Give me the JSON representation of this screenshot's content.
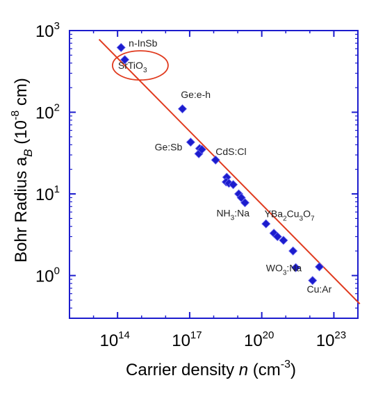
{
  "chart_data": {
    "type": "scatter",
    "title": "",
    "xlabel": {
      "main": "Carrier density ",
      "var": "n",
      "unit_open": " (cm",
      "unit_exp": "-3",
      "unit_close": ")"
    },
    "ylabel": {
      "main": "Bohr Radius a",
      "sub": "B",
      "unit_open": " (10",
      "unit_exp": "-8",
      "unit_close": " cm)"
    },
    "x_scale": "log",
    "y_scale": "log",
    "xlim": [
      1000000000000.0,
      1e+24
    ],
    "ylim": [
      0.3,
      1000
    ],
    "x_ticks": [
      {
        "value": 100000000000000.0,
        "base": "10",
        "exp": "14"
      },
      {
        "value": 1e+17,
        "base": "10",
        "exp": "17"
      },
      {
        "value": 1e+20,
        "base": "10",
        "exp": "20"
      },
      {
        "value": 1e+23,
        "base": "10",
        "exp": "23"
      }
    ],
    "y_ticks": [
      {
        "value": 1,
        "base": "10",
        "exp": "0"
      },
      {
        "value": 10,
        "base": "10",
        "exp": "1"
      },
      {
        "value": 100,
        "base": "10",
        "exp": "2"
      },
      {
        "value": 1000,
        "base": "10",
        "exp": "3"
      }
    ],
    "series": [
      {
        "points": [
          {
            "x": 140000000000000.0,
            "y": 620
          },
          {
            "x": 200000000000000.0,
            "y": 440
          },
          {
            "x": 5e+16,
            "y": 110
          },
          {
            "x": 1.1e+17,
            "y": 43
          },
          {
            "x": 2.6e+17,
            "y": 36
          },
          {
            "x": 2.4e+17,
            "y": 31
          },
          {
            "x": 3.2e+17,
            "y": 35
          },
          {
            "x": 1.2e+18,
            "y": 26
          },
          {
            "x": 3.5e+18,
            "y": 16
          },
          {
            "x": 3.3e+18,
            "y": 14
          },
          {
            "x": 4.3e+18,
            "y": 13.5
          },
          {
            "x": 6.5e+18,
            "y": 13
          },
          {
            "x": 1.1e+19,
            "y": 10
          },
          {
            "x": 1.4e+19,
            "y": 9
          },
          {
            "x": 2e+19,
            "y": 7.8
          },
          {
            "x": 1.5e+20,
            "y": 4.3
          },
          {
            "x": 3.2e+20,
            "y": 3.3
          },
          {
            "x": 4.5e+20,
            "y": 3.0
          },
          {
            "x": 8e+20,
            "y": 2.7
          },
          {
            "x": 2e+21,
            "y": 2.0
          },
          {
            "x": 2.6e+21,
            "y": 1.25
          },
          {
            "x": 1.3e+22,
            "y": 0.87
          },
          {
            "x": 2.5e+22,
            "y": 1.28
          }
        ],
        "marker_color": "#1c1ccd",
        "marker_edge_color": "#6a6af0"
      }
    ],
    "fit_line": {
      "color": "#e03a1e",
      "x": [
        17000000000000.0,
        1.2e+24
      ],
      "y": [
        780,
        0.45
      ]
    },
    "annotations": [
      {
        "text": "n-InSb",
        "x": 290000000000000.0,
        "y": 640
      },
      {
        "text": "Ge:e-h",
        "x": 4.3e+16,
        "y": 150
      },
      {
        "text": "Ge:Sb",
        "x": 3500000000000000.0,
        "y": 34
      },
      {
        "text": "CdS:Cl",
        "x": 1.2e+18,
        "y": 30
      },
      {
        "text": "YBa",
        "sub": [
          "2",
          "3",
          "7"
        ],
        "parts": [
          "YBa",
          "Cu",
          "O"
        ],
        "x": 1.3e+20,
        "y": 5.2
      },
      {
        "parts": [
          "NH",
          ":Na"
        ],
        "sub": [
          "3"
        ],
        "x": 1.3e+18,
        "y": 5.3
      },
      {
        "parts": [
          "WO",
          ":Na"
        ],
        "sub": [
          "3"
        ],
        "x": 1.5e+20,
        "y": 1.13
      },
      {
        "text": "Cu:Ar",
        "x": 7.5e+21,
        "y": 0.62
      }
    ],
    "highlight": {
      "parts": [
        "SrTiO",
        ""
      ],
      "sub": [
        "3"
      ],
      "color": "#e03a1e",
      "x": 120000000000000.0,
      "y": 360
    },
    "frame_color": "#1c1ccd",
    "grid": false,
    "legend": "none"
  }
}
